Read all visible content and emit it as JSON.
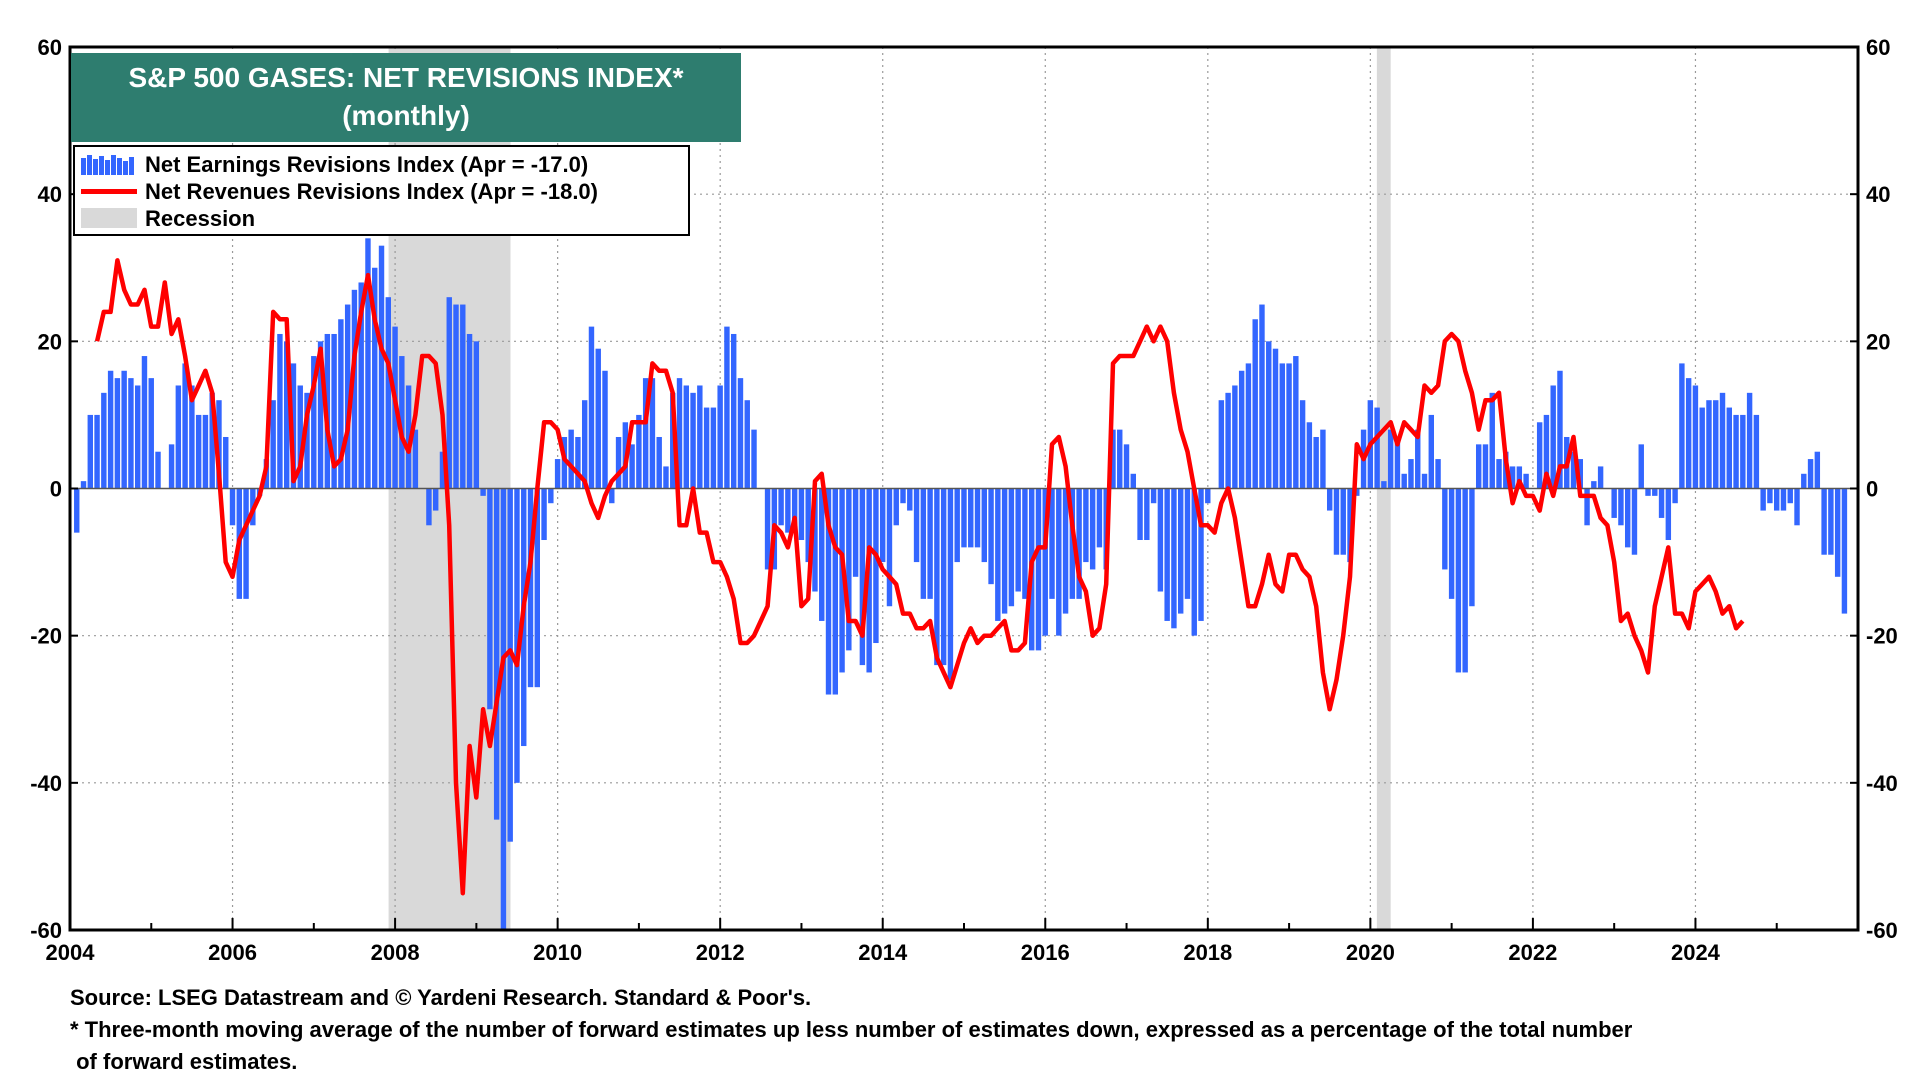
{
  "chart_data": {
    "type": "bar+line",
    "title": "S&P 500 GASES: NET REVISIONS INDEX*",
    "subtitle": "(monthly)",
    "legend": {
      "earnings": "Net Earnings Revisions Index (Apr  = -17.0)",
      "revenues": "Net Revenues Revisions Index (Apr  = -18.0)",
      "recession": "Recession"
    },
    "x_range": [
      2004,
      2026
    ],
    "x_ticks": [
      "2004",
      "2006",
      "2008",
      "2010",
      "2012",
      "2014",
      "2016",
      "2018",
      "2020",
      "2022",
      "2024"
    ],
    "ylim": [
      -60,
      60
    ],
    "y_ticks": [
      "60",
      "40",
      "20",
      "0",
      "-20",
      "-40",
      "-60"
    ],
    "recessions": [
      [
        2007.92,
        2009.42
      ],
      [
        2020.08,
        2020.25
      ]
    ],
    "earnings_start": 2004.083,
    "earnings_values": [
      -6,
      1,
      10,
      10,
      13,
      16,
      15,
      16,
      15,
      14,
      18,
      15,
      5,
      0,
      6,
      14,
      17,
      14,
      10,
      10,
      13,
      12,
      7,
      -5,
      -15,
      -15,
      -5,
      -1,
      4,
      12,
      21,
      20,
      17,
      14,
      13,
      18,
      20,
      21,
      21,
      23,
      25,
      27,
      28,
      34,
      30,
      33,
      26,
      22,
      18,
      14,
      8,
      0,
      -5,
      -3,
      5,
      26,
      25,
      25,
      21,
      20,
      -1,
      -30,
      -45,
      -60,
      -48,
      -40,
      -35,
      -27,
      -27,
      -7,
      -2,
      4,
      7,
      8,
      7,
      12,
      22,
      19,
      16,
      -2,
      7,
      9,
      6,
      10,
      15,
      15,
      7,
      3,
      13,
      15,
      14,
      13,
      14,
      11,
      11,
      14,
      22,
      21,
      15,
      12,
      8,
      0,
      -11,
      -11,
      -5,
      -6,
      -5,
      -7,
      -10,
      -14,
      -18,
      -28,
      -28,
      -25,
      -22,
      -12,
      -24,
      -25,
      -21,
      -10,
      -16,
      -5,
      -2,
      -3,
      -10,
      -15,
      -15,
      -24,
      -24,
      -26,
      -10,
      -8,
      -8,
      -8,
      -10,
      -13,
      -18,
      -17,
      -16,
      -14,
      -15,
      -22,
      -22,
      -20,
      -15,
      -20,
      -17,
      -15,
      -15,
      -10,
      -11,
      -8,
      -11,
      8,
      8,
      6,
      2,
      -7,
      -7,
      -2,
      -14,
      -18,
      -19,
      -17,
      -15,
      -20,
      -18,
      -2,
      0,
      12,
      13,
      14,
      16,
      17,
      23,
      25,
      20,
      19,
      17,
      17,
      18,
      12,
      9,
      7,
      8,
      -3,
      -9,
      -9,
      -10,
      -1,
      8,
      12,
      11,
      1,
      8,
      7,
      2,
      4,
      8,
      2,
      10,
      4,
      -11,
      -15,
      -25,
      -25,
      -16,
      6,
      6,
      13,
      4,
      5,
      3,
      3,
      2,
      0,
      9,
      10,
      14,
      16,
      7,
      5,
      4,
      -5,
      1,
      3,
      0,
      -4,
      -5,
      -8,
      -9,
      6,
      -1,
      -1,
      -4,
      -7,
      -2,
      17,
      15,
      14,
      11,
      12,
      12,
      13,
      11,
      10,
      10,
      13,
      10,
      -3,
      -2,
      -3,
      -3,
      -2,
      -5,
      2,
      4,
      5,
      -9,
      -9,
      -12,
      -17
    ],
    "revenues_start": 2004.333,
    "revenues_values": [
      20,
      24,
      24,
      31,
      27,
      25,
      25,
      27,
      22,
      22,
      28,
      21,
      23,
      18,
      12,
      14,
      16,
      13,
      2,
      -10,
      -12,
      -7,
      -5,
      -3,
      -1,
      3,
      24,
      23,
      23,
      1,
      3,
      10,
      14,
      19,
      8,
      3,
      4,
      8,
      18,
      24,
      29,
      23,
      19,
      17,
      12,
      7,
      5,
      10,
      18,
      18,
      17,
      10,
      -5,
      -40,
      -55,
      -35,
      -42,
      -30,
      -35,
      -29,
      -23,
      -22,
      -24,
      -16,
      -10,
      0,
      9,
      9,
      8,
      4,
      3,
      2,
      1,
      -2,
      -4,
      -1,
      1,
      2,
      3,
      9,
      9,
      9,
      17,
      16,
      16,
      13,
      -5,
      -5,
      0,
      -6,
      -6,
      -10,
      -10,
      -12,
      -15,
      -21,
      -21,
      -20,
      -18,
      -16,
      -5,
      -6,
      -8,
      -4,
      -16,
      -15,
      1,
      2,
      -5,
      -8,
      -9,
      -18,
      -18,
      -20,
      -8,
      -9,
      -11,
      -12,
      -13,
      -17,
      -17,
      -19,
      -19,
      -18,
      -23,
      -25,
      -27,
      -24,
      -21,
      -19,
      -21,
      -20,
      -20,
      -19,
      -18,
      -22,
      -22,
      -21,
      -10,
      -8,
      -8,
      6,
      7,
      3,
      -5,
      -12,
      -14,
      -20,
      -19,
      -13,
      17,
      18,
      18,
      18,
      20,
      22,
      20,
      22,
      20,
      13,
      8,
      5,
      0,
      -5,
      -5,
      -6,
      -2,
      0,
      -4,
      -10,
      -16,
      -16,
      -13,
      -9,
      -13,
      -14,
      -9,
      -9,
      -11,
      -12,
      -16,
      -25,
      -30,
      -26,
      -20,
      -12,
      6,
      4,
      6,
      7,
      8,
      9,
      6,
      9,
      8,
      7,
      14,
      13,
      14,
      20,
      21,
      20,
      16,
      13,
      8,
      12,
      12,
      13,
      4,
      -2,
      1,
      -1,
      -1,
      -3,
      2,
      -1,
      3,
      3,
      7,
      -1,
      -1,
      -1,
      -4,
      -5,
      -10,
      -18,
      -17,
      -20,
      -22,
      -25,
      -16,
      -12,
      -8,
      -17,
      -17,
      -19,
      -14,
      -13,
      -12,
      -14,
      -17,
      -16,
      -19,
      -18
    ]
  },
  "footer": {
    "source": "Source: LSEG Datastream and © Yardeni Research. Standard & Poor's.",
    "note_line1": "* Three-month moving average of the number of forward estimates up less number of estimates down, expressed as a percentage of the total number",
    "note_line2": " of forward estimates."
  },
  "colors": {
    "bars": "#3366ff",
    "line": "#ff0000",
    "recession": "#d9d9d9",
    "title_bg": "#2e7d6f"
  }
}
